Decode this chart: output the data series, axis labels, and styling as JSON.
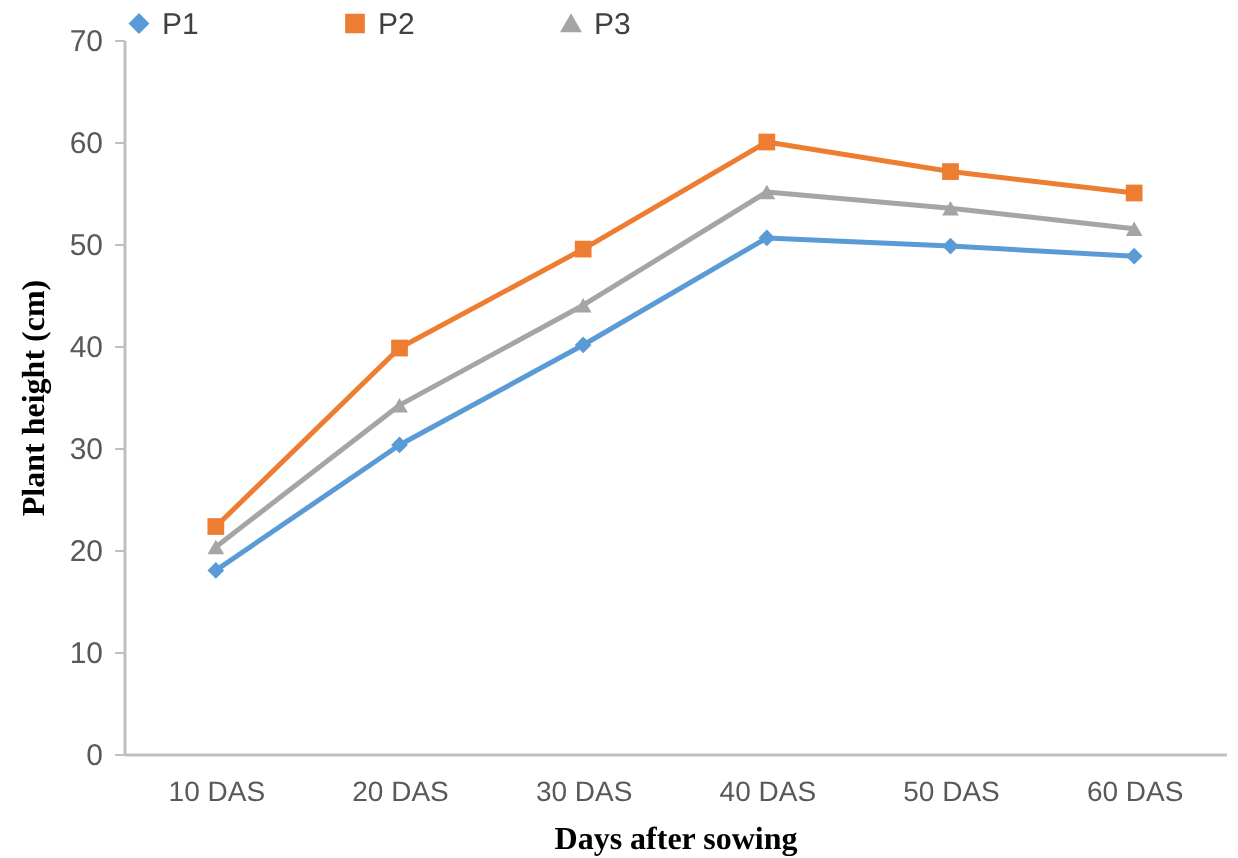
{
  "chart_data": {
    "type": "line",
    "xlabel": "Days after sowing",
    "ylabel": "Plant height (cm)",
    "categories": [
      "10 DAS",
      "20 DAS",
      "30 DAS",
      "40 DAS",
      "50 DAS",
      "60 DAS"
    ],
    "series": [
      {
        "name": "P1",
        "color": "#5b9bd5",
        "marker": "diamond",
        "values": [
          18,
          30.3,
          40.1,
          50.6,
          49.8,
          48.8
        ]
      },
      {
        "name": "P2",
        "color": "#ed7d31",
        "marker": "square",
        "values": [
          22.3,
          39.8,
          49.5,
          60,
          57.1,
          55
        ]
      },
      {
        "name": "P3",
        "color": "#a5a5a5",
        "marker": "triangle",
        "values": [
          20.3,
          34.2,
          44,
          55.1,
          53.5,
          51.5
        ]
      }
    ],
    "ylim": [
      0,
      70
    ],
    "yticks": [
      0,
      10,
      20,
      30,
      40,
      50,
      60,
      70
    ],
    "grid": false,
    "legend": "top"
  }
}
